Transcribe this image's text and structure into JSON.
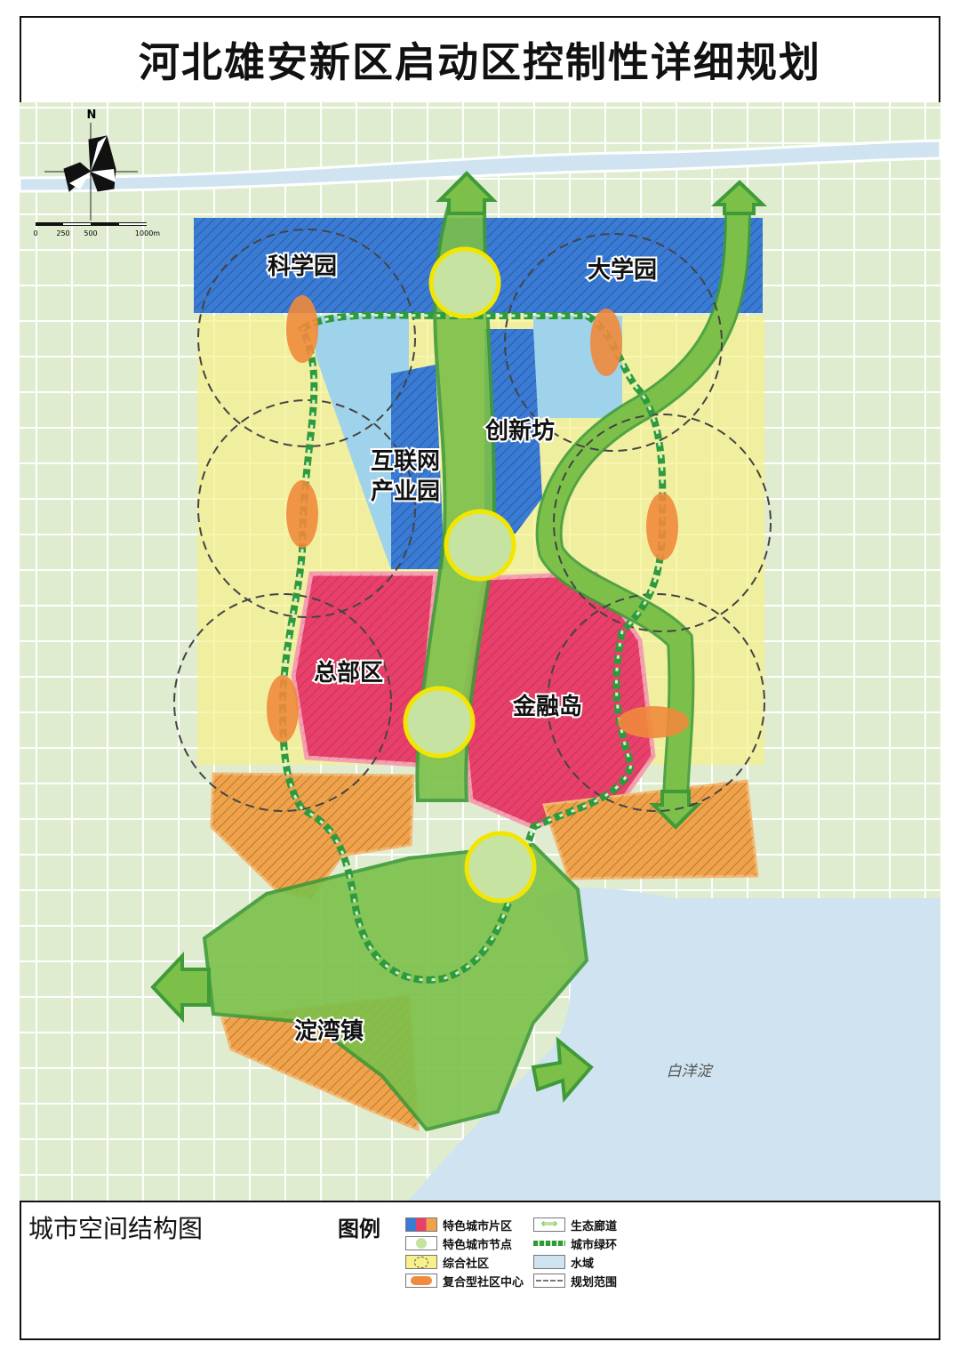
{
  "title": "河北雄安新区启动区控制性详细规划",
  "map": {
    "compass_label": "N",
    "scale_labels": [
      "0",
      "250",
      "500",
      "1000m"
    ],
    "districts": {
      "science_park": "科学园",
      "university_park": "大学园",
      "innovation_lane": "创新坊",
      "internet_park_line1": "互联网",
      "internet_park_line2": "产业园",
      "headquarters": "总部区",
      "financial_island": "金融岛",
      "dianwan_town": "淀湾镇"
    },
    "lake_label": "白洋淀",
    "colors": {
      "special_district_blue": "#3a7bd5",
      "special_district_pink": "#e8406a",
      "special_district_orange": "#f0a24a",
      "node": "#c6e3a2",
      "node_ring": "#f2e600",
      "community": "#f7f08c",
      "community_center": "#f08a3c",
      "eco_corridor": "#7cc04a",
      "green_ring": "#2e9a3e",
      "water": "#cfe4f0"
    }
  },
  "footer": {
    "map_name": "城市空间结构图",
    "legend_title": "图例",
    "legend": [
      {
        "icon": "special-district-swatch",
        "label": "特色城市片区"
      },
      {
        "icon": "special-node-swatch",
        "label": "特色城市节点"
      },
      {
        "icon": "community-swatch",
        "label": "综合社区"
      },
      {
        "icon": "community-center-swatch",
        "label": "复合型社区中心"
      },
      {
        "icon": "eco-corridor-swatch",
        "label": "生态廊道"
      },
      {
        "icon": "green-ring-swatch",
        "label": "城市绿环"
      },
      {
        "icon": "water-swatch",
        "label": "水域"
      },
      {
        "icon": "planning-boundary-swatch",
        "label": "规划范围"
      }
    ]
  }
}
